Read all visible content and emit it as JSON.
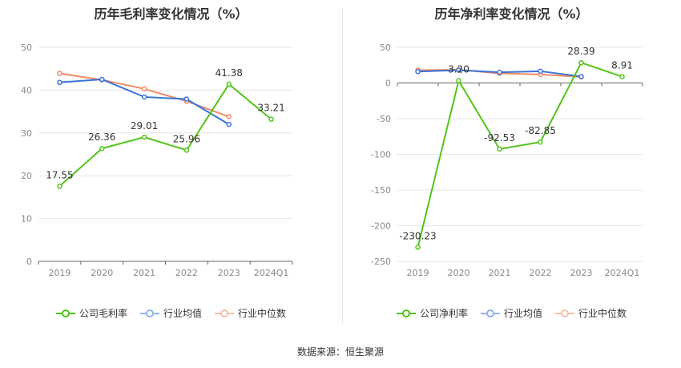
{
  "colors": {
    "company": "#52c41a",
    "avg": "#3a73d9",
    "median": "#f08a63"
  },
  "chart_data": [
    {
      "type": "line",
      "title": "历年毛利率变化情况（%）",
      "categories": [
        "2019",
        "2020",
        "2021",
        "2022",
        "2023",
        "2024Q1"
      ],
      "ylim": [
        0,
        50
      ],
      "yticks": [
        0,
        10,
        20,
        30,
        40,
        50
      ],
      "series": [
        {
          "name": "公司毛利率",
          "key": "company",
          "values": [
            17.55,
            26.36,
            29.01,
            25.96,
            41.38,
            33.21
          ],
          "labels": [
            "17.55",
            "26.36",
            "29.01",
            "25.96",
            "41.38",
            "33.21"
          ]
        },
        {
          "name": "行业均值",
          "key": "avg",
          "values": [
            41.8,
            42.5,
            38.4,
            37.9,
            32.0,
            null
          ]
        },
        {
          "name": "行业中位数",
          "key": "median",
          "values": [
            43.9,
            42.4,
            40.3,
            37.4,
            33.8,
            null
          ]
        }
      ]
    },
    {
      "type": "line",
      "title": "历年净利率变化情况（%）",
      "categories": [
        "2019",
        "2020",
        "2021",
        "2022",
        "2023",
        "2024Q1"
      ],
      "ylim": [
        -250,
        50
      ],
      "yticks": [
        -250,
        -200,
        -150,
        -100,
        -50,
        0,
        50
      ],
      "series": [
        {
          "name": "公司净利率",
          "key": "company",
          "values": [
            -230.23,
            3.2,
            -92.53,
            -82.85,
            28.39,
            8.91
          ],
          "labels": [
            "-230.23",
            "3.20",
            "-92.53",
            "-82.85",
            "28.39",
            "8.91"
          ]
        },
        {
          "name": "行业均值",
          "key": "avg",
          "values": [
            16.0,
            18.0,
            15.0,
            16.5,
            9.0,
            null
          ]
        },
        {
          "name": "行业中位数",
          "key": "median",
          "values": [
            18.0,
            18.5,
            13.5,
            12.0,
            8.5,
            null
          ]
        }
      ]
    }
  ],
  "footer": {
    "source": "数据来源：恒生聚源"
  }
}
